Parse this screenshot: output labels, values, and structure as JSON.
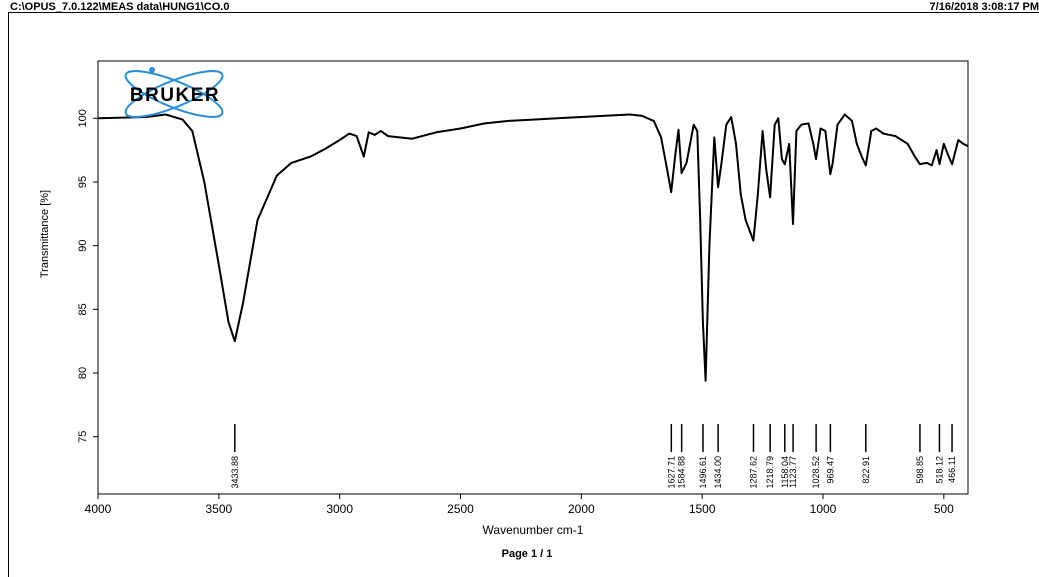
{
  "header": {
    "file_path": "C:\\OPUS_7.0.122\\MEAS data\\HUNG1\\CO.0",
    "datetime": "7/16/2018 3:08:17 PM"
  },
  "logo": {
    "text": "BRUKER",
    "color": "#000000",
    "orbit_color": "#2a8fd6"
  },
  "footer": {
    "page_label": "Page 1 / 1"
  },
  "chart_data": {
    "type": "line",
    "title": "",
    "xlabel": "Wavenumber cm-1",
    "ylabel": "Transmittance [%]",
    "xlim": [
      4000,
      400
    ],
    "ylim": [
      70.5,
      104.5
    ],
    "x_ticks": [
      4000,
      3500,
      3000,
      2500,
      2000,
      1500,
      1000,
      500
    ],
    "y_ticks": [
      75,
      80,
      85,
      90,
      95,
      100
    ],
    "grid": false,
    "line_color": "#000000",
    "series": [
      {
        "x": [
          4000,
          3800,
          3720,
          3650,
          3610,
          3560,
          3500,
          3460,
          3434,
          3400,
          3340,
          3260,
          3200,
          3120,
          3060,
          3000,
          2960,
          2930,
          2900,
          2880,
          2855,
          2830,
          2800,
          2700,
          2600,
          2500,
          2400,
          2300,
          2200,
          2100,
          2000,
          1900,
          1800,
          1750,
          1700,
          1670,
          1645,
          1628,
          1612,
          1598,
          1585,
          1565,
          1535,
          1520,
          1508,
          1497,
          1486,
          1470,
          1450,
          1434,
          1420,
          1400,
          1380,
          1360,
          1340,
          1320,
          1300,
          1288,
          1270,
          1250,
          1235,
          1219,
          1200,
          1185,
          1170,
          1158,
          1140,
          1130,
          1124,
          1110,
          1090,
          1060,
          1040,
          1029,
          1010,
          990,
          970,
          960,
          940,
          910,
          880,
          860,
          840,
          823,
          800,
          780,
          750,
          700,
          650,
          620,
          599,
          570,
          550,
          530,
          518,
          500,
          480,
          466,
          440,
          420,
          400
        ],
        "y": [
          100.0,
          100.1,
          100.3,
          99.9,
          99.0,
          95.0,
          88.5,
          84.0,
          82.5,
          85.5,
          92.0,
          95.5,
          96.5,
          97.0,
          97.6,
          98.3,
          98.8,
          98.6,
          97.0,
          98.9,
          98.7,
          99.0,
          98.6,
          98.4,
          98.9,
          99.2,
          99.6,
          99.8,
          99.9,
          100.0,
          100.1,
          100.2,
          100.3,
          100.2,
          99.8,
          98.5,
          96.0,
          94.2,
          97.0,
          99.1,
          95.7,
          96.5,
          99.5,
          99.0,
          92.0,
          84.0,
          79.4,
          90.0,
          98.5,
          94.6,
          96.5,
          99.5,
          100.1,
          98.0,
          94.0,
          92.0,
          91.0,
          90.4,
          94.0,
          99.0,
          96.0,
          93.8,
          99.5,
          100.0,
          96.8,
          96.4,
          98.0,
          94.0,
          91.7,
          99.0,
          99.5,
          99.6,
          98.0,
          96.8,
          99.2,
          99.0,
          95.6,
          96.5,
          99.5,
          100.3,
          99.8,
          98.0,
          97.0,
          96.3,
          99.0,
          99.2,
          98.8,
          98.6,
          98.0,
          97.0,
          96.4,
          96.5,
          96.3,
          97.5,
          96.4,
          98.0,
          97.0,
          96.4,
          98.3,
          98.0,
          97.8
        ]
      }
    ],
    "peaks": [
      "3433.88",
      "1627.71",
      "1584.88",
      "1496.61",
      "1434.00",
      "1287.62",
      "1218.79",
      "1158.04",
      "1123.77",
      "1028.52",
      "969.47",
      "822.91",
      "598.85",
      "518.12",
      "466.11"
    ],
    "peak_positions": [
      3433.88,
      1627.71,
      1584.88,
      1496.61,
      1434.0,
      1287.62,
      1218.79,
      1158.04,
      1123.77,
      1028.52,
      969.47,
      822.91,
      598.85,
      518.12,
      466.11
    ]
  }
}
